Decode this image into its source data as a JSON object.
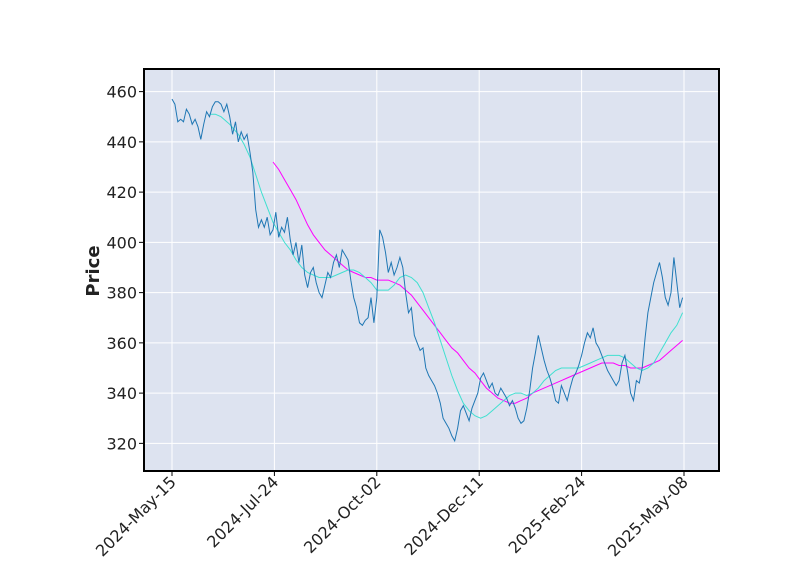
{
  "chart_data": {
    "type": "line",
    "title": "",
    "xlabel": "",
    "ylabel": "Price",
    "ylim": [
      309,
      469
    ],
    "grid": true,
    "x_ticks": [
      "2024-May-15",
      "2024-Jul-24",
      "2024-Oct-02",
      "2024-Dec-11",
      "2025-Feb-24",
      "2025-May-08"
    ],
    "y_ticks": [
      320,
      340,
      360,
      380,
      400,
      420,
      440,
      460
    ],
    "colors": {
      "background": "#dde3f0",
      "grid": "#ffffff",
      "price": "#1f77b4",
      "ma_short": "#40e0d0",
      "ma_long": "#ff00ff"
    },
    "price_points": [
      [
        0,
        457
      ],
      [
        2,
        455
      ],
      [
        4,
        448
      ],
      [
        6,
        449
      ],
      [
        8,
        448
      ],
      [
        10,
        453
      ],
      [
        12,
        451
      ],
      [
        14,
        447
      ],
      [
        16,
        449
      ],
      [
        18,
        446
      ],
      [
        20,
        441
      ],
      [
        22,
        447
      ],
      [
        24,
        452
      ],
      [
        26,
        450
      ],
      [
        28,
        454
      ],
      [
        30,
        456
      ],
      [
        32,
        456
      ],
      [
        34,
        455
      ],
      [
        36,
        452
      ],
      [
        38,
        455
      ],
      [
        40,
        450
      ],
      [
        42,
        443
      ],
      [
        44,
        448
      ],
      [
        46,
        440
      ],
      [
        48,
        444
      ],
      [
        50,
        441
      ],
      [
        52,
        443
      ],
      [
        54,
        436
      ],
      [
        56,
        428
      ],
      [
        58,
        413
      ],
      [
        60,
        406
      ],
      [
        62,
        409
      ],
      [
        64,
        406
      ],
      [
        66,
        410
      ],
      [
        68,
        403
      ],
      [
        70,
        405
      ],
      [
        72,
        412
      ],
      [
        74,
        402
      ],
      [
        76,
        406
      ],
      [
        78,
        404
      ],
      [
        80,
        410
      ],
      [
        82,
        401
      ],
      [
        84,
        395
      ],
      [
        86,
        400
      ],
      [
        88,
        392
      ],
      [
        90,
        399
      ],
      [
        92,
        387
      ],
      [
        94,
        382
      ],
      [
        96,
        388
      ],
      [
        98,
        390
      ],
      [
        100,
        384
      ],
      [
        102,
        380
      ],
      [
        104,
        378
      ],
      [
        106,
        383
      ],
      [
        108,
        388
      ],
      [
        110,
        386
      ],
      [
        112,
        392
      ],
      [
        114,
        395
      ],
      [
        116,
        390
      ],
      [
        118,
        397
      ],
      [
        120,
        395
      ],
      [
        122,
        393
      ],
      [
        124,
        385
      ],
      [
        126,
        378
      ],
      [
        128,
        374
      ],
      [
        130,
        368
      ],
      [
        132,
        367
      ],
      [
        134,
        369
      ],
      [
        136,
        370
      ],
      [
        138,
        378
      ],
      [
        140,
        368
      ],
      [
        142,
        378
      ],
      [
        144,
        405
      ],
      [
        146,
        402
      ],
      [
        148,
        396
      ],
      [
        150,
        388
      ],
      [
        152,
        392
      ],
      [
        154,
        387
      ],
      [
        156,
        390
      ],
      [
        158,
        394
      ],
      [
        160,
        390
      ],
      [
        162,
        380
      ],
      [
        164,
        372
      ],
      [
        166,
        374
      ],
      [
        168,
        363
      ],
      [
        170,
        360
      ],
      [
        172,
        357
      ],
      [
        174,
        358
      ],
      [
        176,
        350
      ],
      [
        178,
        347
      ],
      [
        180,
        345
      ],
      [
        182,
        343
      ],
      [
        184,
        340
      ],
      [
        186,
        336
      ],
      [
        188,
        330
      ],
      [
        190,
        328
      ],
      [
        192,
        326
      ],
      [
        194,
        323
      ],
      [
        196,
        321
      ],
      [
        198,
        326
      ],
      [
        200,
        333
      ],
      [
        202,
        335
      ],
      [
        204,
        332
      ],
      [
        206,
        329
      ],
      [
        208,
        334
      ],
      [
        210,
        337
      ],
      [
        212,
        340
      ],
      [
        214,
        346
      ],
      [
        216,
        348
      ],
      [
        218,
        345
      ],
      [
        220,
        342
      ],
      [
        222,
        344
      ],
      [
        224,
        340
      ],
      [
        226,
        339
      ],
      [
        228,
        342
      ],
      [
        230,
        340
      ],
      [
        232,
        338
      ],
      [
        234,
        335
      ],
      [
        236,
        337
      ],
      [
        238,
        334
      ],
      [
        240,
        330
      ],
      [
        242,
        328
      ],
      [
        244,
        329
      ],
      [
        246,
        334
      ],
      [
        248,
        341
      ],
      [
        250,
        350
      ],
      [
        252,
        356
      ],
      [
        254,
        363
      ],
      [
        256,
        358
      ],
      [
        258,
        353
      ],
      [
        260,
        349
      ],
      [
        262,
        346
      ],
      [
        264,
        342
      ],
      [
        266,
        337
      ],
      [
        268,
        336
      ],
      [
        270,
        343
      ],
      [
        272,
        340
      ],
      [
        274,
        337
      ],
      [
        276,
        342
      ],
      [
        278,
        346
      ],
      [
        280,
        348
      ],
      [
        282,
        351
      ],
      [
        284,
        355
      ],
      [
        286,
        360
      ],
      [
        288,
        364
      ],
      [
        290,
        362
      ],
      [
        292,
        366
      ],
      [
        294,
        360
      ],
      [
        296,
        358
      ],
      [
        298,
        355
      ],
      [
        300,
        352
      ],
      [
        302,
        349
      ],
      [
        304,
        347
      ],
      [
        306,
        345
      ],
      [
        308,
        343
      ],
      [
        310,
        345
      ],
      [
        312,
        352
      ],
      [
        314,
        355
      ],
      [
        316,
        348
      ],
      [
        318,
        340
      ],
      [
        320,
        337
      ],
      [
        322,
        345
      ],
      [
        324,
        344
      ],
      [
        326,
        350
      ],
      [
        328,
        362
      ],
      [
        330,
        372
      ],
      [
        332,
        378
      ],
      [
        334,
        384
      ],
      [
        336,
        388
      ],
      [
        338,
        392
      ],
      [
        340,
        386
      ],
      [
        342,
        378
      ],
      [
        344,
        375
      ],
      [
        346,
        380
      ],
      [
        348,
        394
      ],
      [
        350,
        384
      ],
      [
        352,
        374
      ],
      [
        354,
        378
      ]
    ],
    "ma_short_points": [
      [
        26,
        451
      ],
      [
        30,
        451
      ],
      [
        34,
        450
      ],
      [
        40,
        447
      ],
      [
        46,
        443
      ],
      [
        50,
        439
      ],
      [
        54,
        434
      ],
      [
        58,
        427
      ],
      [
        62,
        420
      ],
      [
        66,
        414
      ],
      [
        70,
        408
      ],
      [
        74,
        404
      ],
      [
        78,
        400
      ],
      [
        82,
        397
      ],
      [
        86,
        393
      ],
      [
        90,
        390
      ],
      [
        94,
        388
      ],
      [
        98,
        387
      ],
      [
        102,
        386
      ],
      [
        106,
        386
      ],
      [
        110,
        386
      ],
      [
        114,
        387
      ],
      [
        118,
        388
      ],
      [
        122,
        389
      ],
      [
        126,
        389
      ],
      [
        130,
        388
      ],
      [
        134,
        386
      ],
      [
        138,
        384
      ],
      [
        142,
        381
      ],
      [
        146,
        381
      ],
      [
        150,
        381
      ],
      [
        154,
        383
      ],
      [
        158,
        386
      ],
      [
        162,
        387
      ],
      [
        166,
        386
      ],
      [
        170,
        384
      ],
      [
        174,
        380
      ],
      [
        178,
        374
      ],
      [
        182,
        368
      ],
      [
        186,
        361
      ],
      [
        190,
        354
      ],
      [
        194,
        347
      ],
      [
        198,
        341
      ],
      [
        202,
        336
      ],
      [
        206,
        333
      ],
      [
        210,
        331
      ],
      [
        214,
        330
      ],
      [
        218,
        331
      ],
      [
        222,
        333
      ],
      [
        226,
        335
      ],
      [
        230,
        337
      ],
      [
        234,
        339
      ],
      [
        238,
        340
      ],
      [
        242,
        340
      ],
      [
        246,
        339
      ],
      [
        250,
        340
      ],
      [
        254,
        342
      ],
      [
        258,
        345
      ],
      [
        262,
        347
      ],
      [
        266,
        349
      ],
      [
        270,
        350
      ],
      [
        274,
        350
      ],
      [
        278,
        350
      ],
      [
        282,
        350
      ],
      [
        286,
        351
      ],
      [
        290,
        352
      ],
      [
        294,
        353
      ],
      [
        298,
        354
      ],
      [
        302,
        355
      ],
      [
        306,
        355
      ],
      [
        310,
        355
      ],
      [
        314,
        354
      ],
      [
        318,
        352
      ],
      [
        322,
        350
      ],
      [
        326,
        349
      ],
      [
        330,
        350
      ],
      [
        334,
        352
      ],
      [
        338,
        356
      ],
      [
        342,
        360
      ],
      [
        346,
        364
      ],
      [
        350,
        367
      ],
      [
        354,
        372
      ]
    ],
    "ma_long_points": [
      [
        70,
        432
      ],
      [
        74,
        429
      ],
      [
        78,
        425
      ],
      [
        82,
        421
      ],
      [
        86,
        417
      ],
      [
        90,
        412
      ],
      [
        94,
        407
      ],
      [
        98,
        403
      ],
      [
        102,
        400
      ],
      [
        106,
        397
      ],
      [
        110,
        395
      ],
      [
        114,
        393
      ],
      [
        118,
        391
      ],
      [
        122,
        389
      ],
      [
        126,
        388
      ],
      [
        130,
        387
      ],
      [
        134,
        386
      ],
      [
        138,
        386
      ],
      [
        142,
        385
      ],
      [
        146,
        385
      ],
      [
        150,
        385
      ],
      [
        154,
        384
      ],
      [
        158,
        383
      ],
      [
        162,
        381
      ],
      [
        166,
        379
      ],
      [
        170,
        376
      ],
      [
        174,
        373
      ],
      [
        178,
        370
      ],
      [
        182,
        367
      ],
      [
        186,
        364
      ],
      [
        190,
        361
      ],
      [
        194,
        358
      ],
      [
        198,
        356
      ],
      [
        202,
        353
      ],
      [
        206,
        350
      ],
      [
        210,
        348
      ],
      [
        214,
        345
      ],
      [
        218,
        342
      ],
      [
        222,
        340
      ],
      [
        226,
        338
      ],
      [
        230,
        337
      ],
      [
        234,
        336
      ],
      [
        238,
        336
      ],
      [
        242,
        337
      ],
      [
        246,
        338
      ],
      [
        250,
        340
      ],
      [
        254,
        341
      ],
      [
        258,
        342
      ],
      [
        262,
        343
      ],
      [
        266,
        344
      ],
      [
        270,
        345
      ],
      [
        274,
        346
      ],
      [
        278,
        347
      ],
      [
        282,
        348
      ],
      [
        286,
        349
      ],
      [
        290,
        350
      ],
      [
        294,
        351
      ],
      [
        298,
        352
      ],
      [
        302,
        352
      ],
      [
        306,
        352
      ],
      [
        310,
        351
      ],
      [
        314,
        351
      ],
      [
        318,
        350
      ],
      [
        322,
        350
      ],
      [
        326,
        350
      ],
      [
        330,
        351
      ],
      [
        334,
        352
      ],
      [
        338,
        353
      ],
      [
        342,
        355
      ],
      [
        346,
        357
      ],
      [
        350,
        359
      ],
      [
        354,
        361
      ]
    ]
  }
}
